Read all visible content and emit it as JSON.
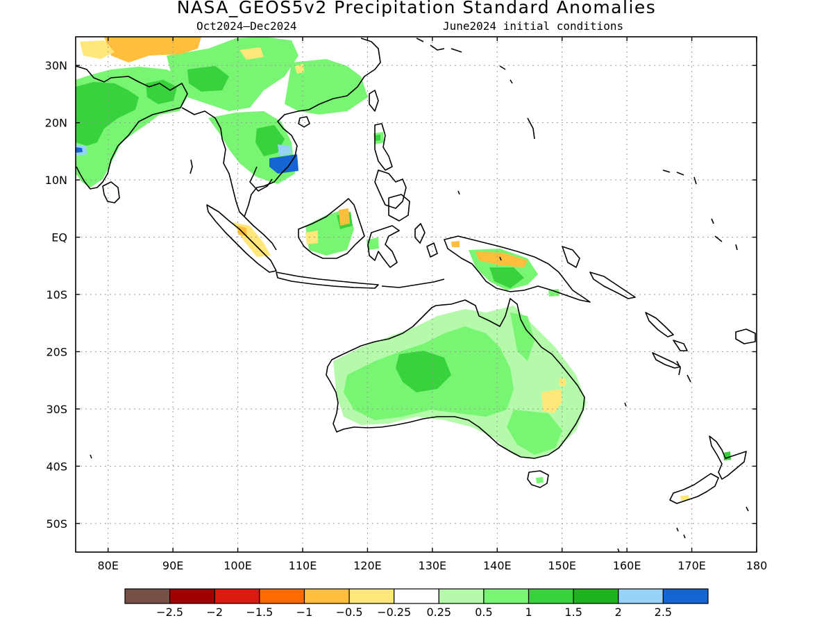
{
  "title": "NASA_GEOS5v2 Precipitation Standard Anomalies",
  "subtitle_left": "Oct2024–Dec2024",
  "subtitle_right": "June2024 initial conditions",
  "map": {
    "lon_range": [
      75,
      180
    ],
    "lat_range": [
      -55,
      35
    ],
    "lat_ticks": [
      {
        "value": 30,
        "label": "30N"
      },
      {
        "value": 20,
        "label": "20N"
      },
      {
        "value": 10,
        "label": "10N"
      },
      {
        "value": 0,
        "label": "EQ"
      },
      {
        "value": -10,
        "label": "10S"
      },
      {
        "value": -20,
        "label": "20S"
      },
      {
        "value": -30,
        "label": "30S"
      },
      {
        "value": -40,
        "label": "40S"
      },
      {
        "value": -50,
        "label": "50S"
      }
    ],
    "lon_ticks": [
      {
        "value": 80,
        "label": "80E"
      },
      {
        "value": 90,
        "label": "90E"
      },
      {
        "value": 100,
        "label": "100E"
      },
      {
        "value": 110,
        "label": "110E"
      },
      {
        "value": 120,
        "label": "120E"
      },
      {
        "value": 130,
        "label": "130E"
      },
      {
        "value": 140,
        "label": "140E"
      },
      {
        "value": 150,
        "label": "150E"
      },
      {
        "value": 160,
        "label": "160E"
      },
      {
        "value": 170,
        "label": "170E"
      },
      {
        "value": 180,
        "label": "180"
      }
    ],
    "grid": true
  },
  "colorbar": {
    "colors": [
      "#775045",
      "#a00000",
      "#dd1a10",
      "#ff6a00",
      "#ffbe3c",
      "#ffe77a",
      "#ffffff",
      "#b4faaa",
      "#78f572",
      "#37d23c",
      "#1eb41e",
      "#96d2fa",
      "#1464d2"
    ],
    "labels": [
      "−2.5",
      "−2",
      "−1.5",
      "−1",
      "−0.5",
      "−0.25",
      "0.25",
      "0.5",
      "1",
      "1.5",
      "2",
      "2.5"
    ]
  }
}
